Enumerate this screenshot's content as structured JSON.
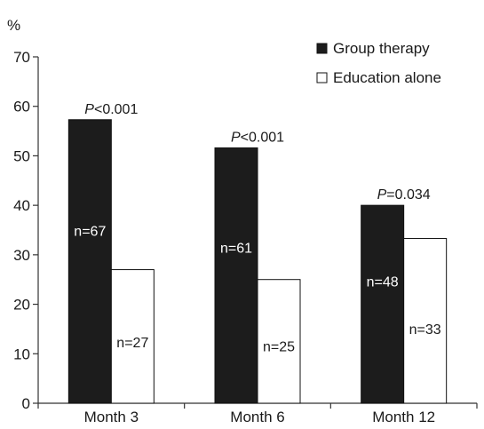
{
  "chart_data": {
    "type": "bar",
    "ylabel": "%",
    "ylim": [
      0,
      70
    ],
    "yticks": [
      0,
      10,
      20,
      30,
      40,
      50,
      60,
      70
    ],
    "categories": [
      "Month 3",
      "Month 6",
      "Month 12"
    ],
    "series": [
      {
        "name": "Group therapy",
        "color": "#1c1c1c",
        "values": [
          57.3,
          51.6,
          40.0
        ],
        "labels": [
          "n=67",
          "n=61",
          "n=48"
        ]
      },
      {
        "name": "Education alone",
        "color": "#ffffff",
        "values": [
          27.0,
          25.0,
          33.3
        ],
        "labels": [
          "n=27",
          "n=25",
          "n=33"
        ]
      }
    ],
    "annotations": [
      {
        "italic": "P",
        "rest": "<0.001"
      },
      {
        "italic": "P",
        "rest": "<0.001"
      },
      {
        "italic": "P",
        "rest": "=0.034"
      }
    ],
    "legend_position": "top-right",
    "grid": false
  }
}
